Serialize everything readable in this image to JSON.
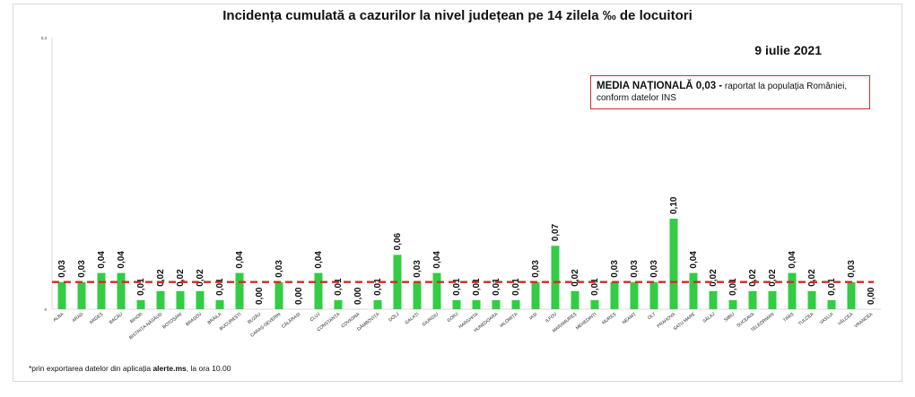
{
  "chart_data": {
    "type": "bar",
    "title": "Incidența cumulată a cazurilor la nivel județean pe 14 zilela ‰ de locuitori",
    "date": "9 iulie 2021",
    "categories": [
      "ALBA",
      "ARAD",
      "ARGEȘ",
      "BACĂU",
      "BIHOR",
      "BISTRIȚA-NĂSĂUD",
      "BOTOȘANI",
      "BRAȘOV",
      "BRĂILA",
      "BUCUREȘTI",
      "BUZĂU",
      "CARAȘ-SEVERIN",
      "CĂLĂRAȘI",
      "CLUJ",
      "CONSTANȚA",
      "COVASNA",
      "DÂMBOVIȚA",
      "DOLJ",
      "GALAȚI",
      "GIURGIU",
      "GORJ",
      "HARGHITA",
      "HUNEDOARA",
      "IALOMIȚA",
      "IAȘI",
      "ILFOV",
      "MARAMUREȘ",
      "MEHEDINȚI",
      "MUREȘ",
      "NEAMȚ",
      "OLT",
      "PRAHOVA",
      "SATU MARE",
      "SĂLAJ",
      "SIBIU",
      "SUCEAVA",
      "TELEORMAN",
      "TIMIȘ",
      "TULCEA",
      "VASLUI",
      "VÂLCEA",
      "VRANCEA"
    ],
    "values": [
      0.03,
      0.03,
      0.04,
      0.04,
      0.01,
      0.02,
      0.02,
      0.02,
      0.01,
      0.04,
      0.0,
      0.03,
      0.0,
      0.04,
      0.01,
      0.0,
      0.01,
      0.06,
      0.03,
      0.04,
      0.01,
      0.01,
      0.01,
      0.01,
      0.03,
      0.07,
      0.02,
      0.01,
      0.03,
      0.03,
      0.03,
      0.1,
      0.04,
      0.02,
      0.01,
      0.02,
      0.02,
      0.04,
      0.02,
      0.01,
      0.03,
      0.0
    ],
    "value_labels": [
      "0,03",
      "0,03",
      "0,04",
      "0,04",
      "0,01",
      "0,02",
      "0,02",
      "0,02",
      "0,01",
      "0,04",
      "0,00",
      "0,03",
      "0,00",
      "0,04",
      "0,01",
      "0,00",
      "0,01",
      "0,06",
      "0,03",
      "0,04",
      "0,01",
      "0,01",
      "0,01",
      "0,01",
      "0,03",
      "0,07",
      "0,02",
      "0,01",
      "0,03",
      "0,03",
      "0,03",
      "0,10",
      "0,04",
      "0,02",
      "0,01",
      "0,02",
      "0,02",
      "0,04",
      "0,02",
      "0,01",
      "0,03",
      "0,00"
    ],
    "bar_color": "#33cc44",
    "reference_line": {
      "value": 0.03,
      "color": "#d42a2a"
    },
    "ylim": [
      0,
      0.3
    ],
    "yticks": [
      {
        "value": 0,
        "label": "0"
      },
      {
        "value": 0.3,
        "label": "0,3"
      }
    ],
    "xlabel": "",
    "ylabel": ""
  },
  "annotation": {
    "media_strong": "MEDIA NAȚIONALĂ 0,03 -",
    "media_rest": " raportat la populația României, conform datelor INS"
  },
  "footnote": {
    "prefix": "*prin exportarea datelor din aplicația ",
    "app": "alerte.ms",
    "suffix": ", la ora 10.00"
  }
}
